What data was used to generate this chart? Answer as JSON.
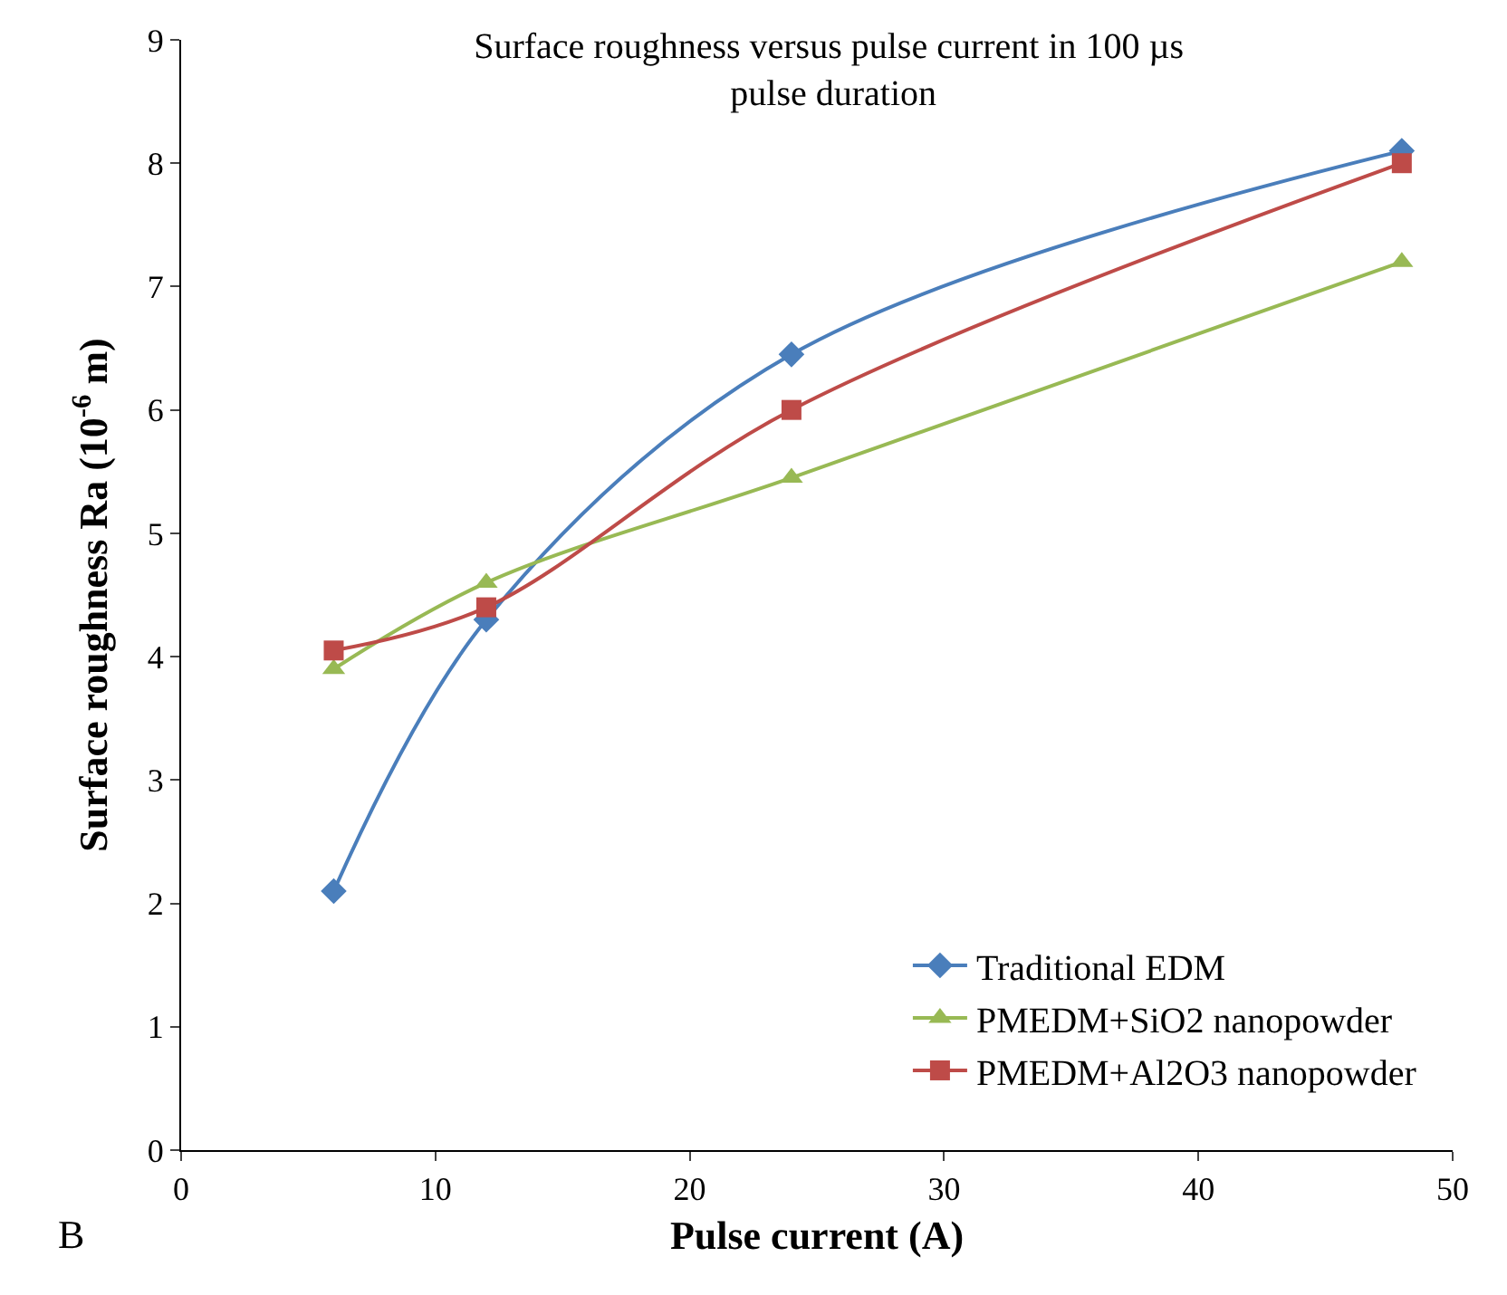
{
  "chart_data": {
    "type": "line",
    "title": "Surface roughness versus pulse current in 100 µs pulse duration",
    "xlabel": "Pulse current (A)",
    "ylabel": "Surface roughness Ra (10$^{-6}$ m)",
    "x": [
      6,
      12,
      24,
      48
    ],
    "series": [
      {
        "name": "Traditional EDM",
        "color": "#4a7ebb",
        "marker": "diamond",
        "values": [
          2.1,
          4.3,
          6.45,
          8.1
        ]
      },
      {
        "name": "PMEDM+SiO2 nanopowder",
        "color": "#98b954",
        "marker": "triangle",
        "values": [
          3.9,
          4.6,
          5.45,
          7.2
        ]
      },
      {
        "name": "PMEDM+Al2O3 nanopowder",
        "color": "#be4b48",
        "marker": "square",
        "values": [
          4.05,
          4.4,
          6.0,
          8.0
        ]
      }
    ],
    "xlim": [
      0,
      50
    ],
    "xticks": [
      0,
      10,
      20,
      30,
      40,
      50
    ],
    "ylim": [
      0,
      9
    ],
    "yticks": [
      0,
      1,
      2,
      3,
      4,
      5,
      6,
      7,
      8,
      9
    ],
    "legend": "bottom right",
    "line_style": "solid",
    "annotations": [
      "B"
    ]
  }
}
